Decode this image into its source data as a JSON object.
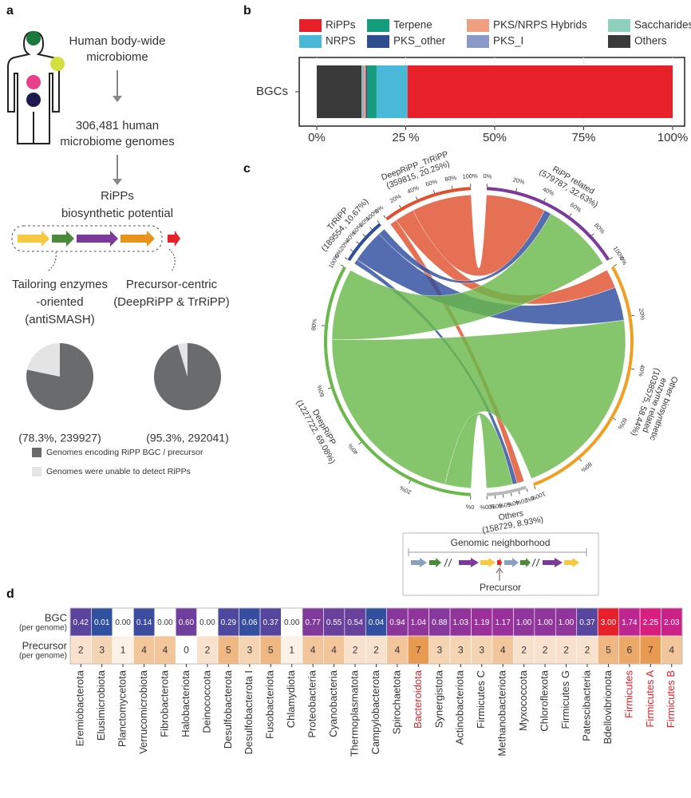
{
  "panel_a": {
    "letter": "a",
    "steps": [
      [
        "Human body-wide",
        "microbiome"
      ],
      [
        "306,481 human",
        "microbiome genomes"
      ],
      [
        "RiPPs",
        "biosynthetic potential"
      ]
    ],
    "approaches": [
      [
        "Tailoring enzymes",
        "-oriented",
        "(antiSMASH)"
      ],
      [
        "Precursor-centric",
        "(DeepRiPP & TrRiPP)"
      ]
    ],
    "legend": [
      "Genomes encoding RiPP BGC / precursor",
      "Genomes were unable to detect RiPPs"
    ],
    "legend_colors": [
      "#6a6b6d",
      "#e4e4e4"
    ]
  },
  "chart_data": [
    {
      "type": "pie",
      "values": [
        78.3
      ],
      "total": 100,
      "value_labels": [
        "(78.3%, 239927)"
      ]
    },
    {
      "type": "pie",
      "values": [
        95.3
      ],
      "total": 100,
      "value_labels": [
        "(95.3%, 292041)"
      ]
    },
    {
      "type": "stacked_bar",
      "panel": "b",
      "categories": [
        "BGCs"
      ],
      "series": [
        {
          "name": "RiPPs",
          "color": "#e8202a",
          "values": [
            74.5
          ]
        },
        {
          "name": "NRPS",
          "color": "#4ab8d8",
          "values": [
            8.7
          ]
        },
        {
          "name": "Terpene",
          "color": "#149c7c",
          "values": [
            2.6
          ]
        },
        {
          "name": "PKS_other",
          "color": "#2e4d8f",
          "values": [
            0.4
          ]
        },
        {
          "name": "PKS/NRPS Hybrids",
          "color": "#f0a080",
          "values": [
            0.6
          ]
        },
        {
          "name": "PKS_I",
          "color": "#8a9ac8",
          "values": [
            0.3
          ]
        },
        {
          "name": "Saccharides",
          "color": "#8ed0bc",
          "values": [
            0.3
          ]
        },
        {
          "name": "Others",
          "color": "#3a3a3a",
          "values": [
            12.6
          ]
        }
      ],
      "xlim": [
        0,
        100
      ],
      "xticks": [
        {
          "value": 0,
          "label": "0%"
        },
        {
          "value": 25,
          "label": "25 %"
        },
        {
          "value": 50,
          "label": "50%"
        },
        {
          "value": 75,
          "label": "75%"
        },
        {
          "value": 100,
          "label": "100%"
        }
      ],
      "grid": true,
      "legend": "top"
    },
    {
      "type": "chord",
      "panel": "c",
      "sources": {
        "names": [
          [
            "DeepRiPP"
          ],
          [
            "TrRiPP"
          ],
          [
            "DeepRiPP_TrRiPP"
          ]
        ],
        "values": [
          1227722,
          189554,
          359815
        ],
        "value_labels": [
          "(1227722, 69.08%)",
          "(189554, 10.67%)",
          "(359815, 20.25%)"
        ],
        "colors": [
          "#6ab84a",
          "#2e4d9f",
          "#e0502e"
        ]
      },
      "targets": {
        "names": [
          [
            "RiPP related"
          ],
          [
            "Other biosynthetic",
            "enzyme related"
          ],
          [
            "Others"
          ]
        ],
        "values": [
          579787,
          1038575,
          158729
        ],
        "value_labels": [
          "(579787, 32.63%)",
          "(1038575, 58.44%)",
          "(158729, 8.93%)"
        ],
        "colors": [
          "#7b3a9a",
          "#f0a020",
          "#b8b8b8"
        ]
      },
      "flows": [
        [
          299787,
          818575,
          109360
        ],
        [
          30000,
          140000,
          19554
        ],
        [
          250000,
          80000,
          29815
        ]
      ],
      "ticks": [
        {
          "value": 0,
          "label": "0%"
        },
        {
          "value": 20,
          "label": "20%"
        },
        {
          "value": 40,
          "label": "40%"
        },
        {
          "value": 60,
          "label": "60%"
        },
        {
          "value": 80,
          "label": "80%"
        },
        {
          "value": 100,
          "label": "100%"
        }
      ],
      "inset": {
        "title": "Genomic neighborhood",
        "marker": "Precursor"
      }
    },
    {
      "type": "heatmap",
      "panel": "d",
      "categories": [
        "Eremiobacterota",
        "Elusimicrobiota",
        "Planctomycetota",
        "Verrucomicrobiota",
        "Fibrobacterota",
        "Halobacteriota",
        "Deinococcota",
        "Desulfobacterota",
        "Desulfobacterota I",
        "Fusobacteriota",
        "Chlamydiota",
        "Proteobacteria",
        "Cyanobacteria",
        "Thermoplasmatota",
        "Campylobacterota",
        "Spirochaetota",
        "Bacteroidota",
        "Synergistota",
        "Actinobacteriota",
        "Firmicutes C",
        "Methanobacteriota",
        "Myxococcota",
        "Chloroflexota",
        "Firmicutes G",
        "Patescibacteria",
        "Bdellovibrionota",
        "Firmicutes",
        "Firmicutes A",
        "Firmicutes B"
      ],
      "label_colors": [
        "#333333",
        "#333333",
        "#333333",
        "#333333",
        "#333333",
        "#333333",
        "#333333",
        "#333333",
        "#333333",
        "#333333",
        "#333333",
        "#333333",
        "#333333",
        "#333333",
        "#333333",
        "#333333",
        "#e8202a",
        "#333333",
        "#333333",
        "#333333",
        "#333333",
        "#333333",
        "#333333",
        "#333333",
        "#333333",
        "#333333",
        "#e8202a",
        "#e8202a",
        "#e8202a"
      ],
      "rows": [
        {
          "name": [
            "BGC",
            "(per genome)"
          ],
          "values": [
            0.42,
            0.01,
            0,
            0.14,
            0,
            0.6,
            0,
            0.29,
            0.06,
            0.37,
            0,
            0.77,
            0.55,
            0.54,
            0.04,
            0.94,
            1.04,
            0.88,
            1.03,
            1.19,
            1.17,
            1,
            1,
            1,
            0.37,
            3,
            1.74,
            2.25,
            2.03
          ],
          "value_labels": [
            "0.42",
            "0.01",
            "0.00",
            "0.14",
            "0.00",
            "0.60",
            "0.00",
            "0.29",
            "0.06",
            "0.37",
            "0.00",
            "0.77",
            "0.55",
            "0.54",
            "0.04",
            "0.94",
            "1.04",
            "0.88",
            "1.03",
            "1.19",
            "1.17",
            "1.00",
            "1.00",
            "1.00",
            "0.37",
            "3.00",
            "1.74",
            "2.25",
            "2.03"
          ],
          "colors": [
            "#2f50a0",
            "#7e3b9c",
            "#b0289a",
            "#d81e7e",
            "#e8202a"
          ],
          "colorlim": [
            0,
            3
          ],
          "zero_color": "#ffffff",
          "text_color": "#ffffff"
        },
        {
          "name": [
            "Precursor",
            "(per genome)"
          ],
          "values": [
            2,
            3,
            1,
            4,
            4,
            0,
            2,
            5,
            3,
            5,
            1,
            4,
            4,
            2,
            2,
            4,
            7,
            3,
            3,
            3,
            4,
            2,
            2,
            2,
            2,
            5,
            6,
            7,
            4
          ],
          "colors": [
            "#ffffff",
            "#e89a50"
          ],
          "colorlim": [
            0,
            7
          ],
          "text_color": "#333333"
        }
      ]
    }
  ]
}
